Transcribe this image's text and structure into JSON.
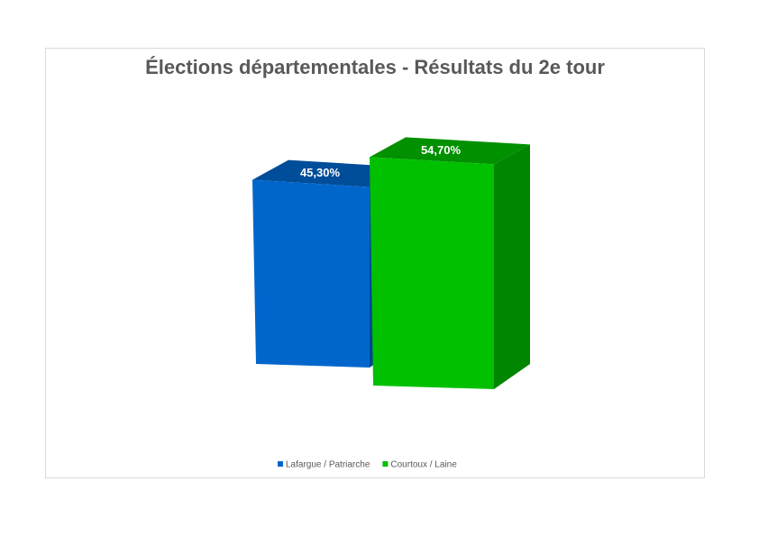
{
  "chart_data": {
    "type": "bar3d",
    "title": "Élections départementales - Résultats du 2e tour",
    "series": [
      {
        "name": "Lafargue / Patriarche",
        "color": "#0066cc",
        "values": [
          45.3
        ],
        "value_labels": [
          "45,30%"
        ]
      },
      {
        "name": "Courtoux / Laine",
        "color": "#00c000",
        "values": [
          54.7
        ],
        "value_labels": [
          "54,70%"
        ]
      }
    ]
  }
}
